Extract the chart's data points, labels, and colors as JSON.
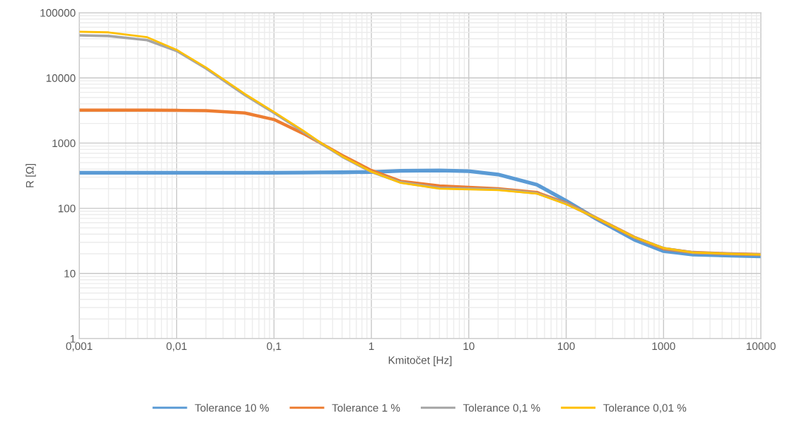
{
  "chart_data": {
    "type": "line",
    "xlabel": "Kmitočet [Hz]",
    "ylabel": "R [Ω]",
    "log": "xy",
    "grid": true,
    "legend": "bottom",
    "marker": "none",
    "line_style": "solid",
    "x": [
      0.001,
      0.002,
      0.005,
      0.01,
      0.02,
      0.05,
      0.1,
      0.2,
      0.3,
      0.5,
      1,
      2,
      5,
      10,
      20,
      50,
      100,
      200,
      500,
      1000,
      2000,
      5000,
      10000
    ],
    "xlim": [
      0.001,
      10000
    ],
    "ylim": [
      1,
      100000
    ],
    "xticks": [
      {
        "value": 0.001,
        "label": "0,001"
      },
      {
        "value": 0.01,
        "label": "0,01"
      },
      {
        "value": 0.1,
        "label": "0,1"
      },
      1,
      10,
      100,
      1000,
      10000
    ],
    "yticks": [
      1,
      10,
      100,
      1000,
      10000,
      100000
    ],
    "series": [
      {
        "name": "Tolerance 10 %",
        "color": "#5b9bd5",
        "values": [
          350,
          350,
          350,
          350,
          350,
          350,
          350,
          352,
          354,
          356,
          360,
          375,
          380,
          370,
          330,
          230,
          130,
          70,
          33,
          22,
          19.5,
          18.8,
          18.3
        ]
      },
      {
        "name": "Tolerance 1 %",
        "color": "#ed7d31",
        "values": [
          3200,
          3200,
          3200,
          3180,
          3150,
          2900,
          2300,
          1400,
          1000,
          650,
          380,
          260,
          220,
          210,
          200,
          175,
          120,
          72,
          36,
          24,
          21,
          20,
          19.5
        ]
      },
      {
        "name": "Tolerance 0,1 %",
        "color": "#a5a5a5",
        "values": [
          45000,
          44000,
          38000,
          26000,
          14000,
          5500,
          2900,
          1500,
          1000,
          620,
          360,
          250,
          205,
          200,
          195,
          170,
          118,
          72,
          36,
          24.5,
          21,
          20,
          19.5
        ]
      },
      {
        "name": "Tolerance 0,01 %",
        "color": "#ffc000",
        "values": [
          51000,
          50000,
          42000,
          27000,
          14500,
          5700,
          3000,
          1550,
          1020,
          630,
          365,
          245,
          200,
          195,
          190,
          168,
          115,
          72,
          36,
          24.5,
          21,
          20,
          19.5
        ]
      }
    ]
  }
}
